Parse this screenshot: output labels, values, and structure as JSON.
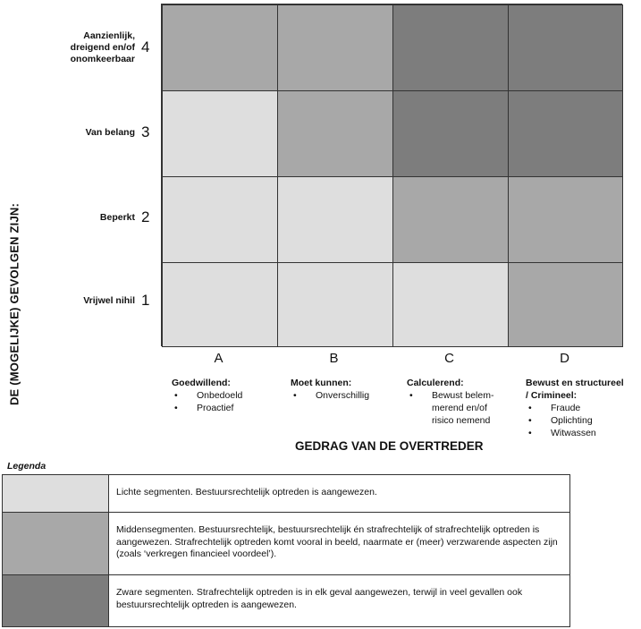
{
  "y_axis_title": "DE (MOGELIJKE) GEVOLGEN ZIJN:",
  "x_axis_title": "GEDRAG VAN DE OVERTREDER",
  "rows": [
    {
      "label": "Aanzienlijk,\ndreigend en/of\nonomkeerbaar",
      "number": "4"
    },
    {
      "label": "Van belang",
      "number": "3"
    },
    {
      "label": "Beperkt",
      "number": "2"
    },
    {
      "label": "Vrijwel nihil",
      "number": "1"
    }
  ],
  "columns": [
    {
      "letter": "A",
      "title": "Goedwillend:",
      "items": [
        "Onbedoeld",
        "Proactief"
      ]
    },
    {
      "letter": "B",
      "title": "Moet kunnen:",
      "items": [
        "Onverschillig"
      ]
    },
    {
      "letter": "C",
      "title": "Calculerend:",
      "items": [
        "Bewust belem-\nmerend en/of\nrisico nemend"
      ]
    },
    {
      "letter": "D",
      "title": "Bewust en structureel\n/ Crimineel:",
      "items": [
        "Fraude",
        "Oplichting",
        "Witwassen"
      ]
    }
  ],
  "levels": [
    "light",
    "middle",
    "heavy"
  ],
  "level_colors": {
    "light": "#dedede",
    "middle": "#a8a8a8",
    "heavy": "#7d7d7d"
  },
  "matrix": [
    [
      "middle",
      "middle",
      "heavy",
      "heavy"
    ],
    [
      "light",
      "middle",
      "heavy",
      "heavy"
    ],
    [
      "light",
      "light",
      "middle",
      "middle"
    ],
    [
      "light",
      "light",
      "light",
      "middle"
    ]
  ],
  "legend": {
    "title": "Legenda",
    "items": [
      {
        "level": "light",
        "text": "Lichte segmenten. Bestuursrechtelijk optreden is aangewezen."
      },
      {
        "level": "middle",
        "text": "Middensegmenten. Bestuursrechtelijk, bestuursrechtelijk én strafrechtelijk of strafrechtelijk optreden is aangewezen. Strafrechtelijk optreden komt vooral in beeld, naarmate er (meer) verzwarende aspecten zijn (zoals ‘verkregen financieel voordeel’)."
      },
      {
        "level": "heavy",
        "text": "Zware segmenten. Strafrechtelijk optreden is in elk geval aangewezen, terwijl in veel gevallen ook bestuursrechtelijk optreden is aangewezen."
      }
    ]
  }
}
